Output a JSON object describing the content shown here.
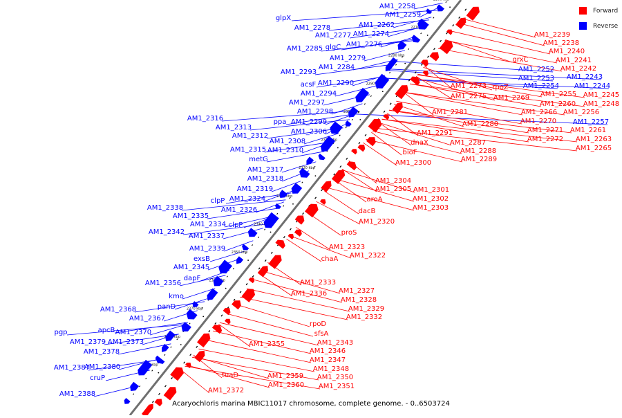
{
  "legend": {
    "forward_label": "Forward",
    "reverse_label": "Reverse",
    "forward_color": "#ff0000",
    "reverse_color": "#0000ff"
  },
  "caption": "Acaryochloris marina MBIC11017 chromosome, complete genome. - 0..6503724",
  "axis_ticks": [
    "2260 kbp",
    "2270 kbp",
    "2280 kbp",
    "2290 kbp",
    "2300 kbp",
    "2310 kbp",
    "2320 kbp",
    "2330 kbp",
    "2340 kbp",
    "2350 kbp",
    "2360 kbp",
    "2370 kbp",
    "2380 kbp",
    "2390 kbp"
  ],
  "reverse_labels": [
    "AM1_2258",
    "AM1_2259",
    "glpX",
    "AM1_2262",
    "AM1_2278",
    "AM1_2277",
    "AM1_2274",
    "AM1_2276",
    "glgC",
    "AM1_2285",
    "AM1_2279",
    "AM1_2284",
    "AM1_2293",
    "AM1_2290",
    "acsF",
    "AM1_2294",
    "AM1_2297",
    "AM1_2298",
    "ppa",
    "AM1_2299",
    "AM1_2306",
    "AM1_2316",
    "AM1_2313",
    "AM1_2312",
    "AM1_2308",
    "AM1_2315",
    "AM1_2310",
    "metG",
    "AM1_2317",
    "AM1_2318",
    "AM1_2319",
    "clpP",
    "AM1_2324",
    "AM1_2338",
    "AM1_2326",
    "AM1_2335",
    "AM1_2334",
    "clpP",
    "AM1_2342",
    "AM1_2337",
    "AM1_2339",
    "exsB",
    "AM1_2345",
    "dapF",
    "AM1_2356",
    "kmo",
    "panD",
    "AM1_2368",
    "AM1_2367",
    "pgp",
    "apcB",
    "AM1_2370",
    "AM1_2379",
    "AM1_2373",
    "AM1_2378",
    "AM1_2387",
    "AM1_2380",
    "cruP",
    "AM1_2388",
    "AM1_2252",
    "AM1_2253",
    "AM1_2243",
    "AM1_2254",
    "AM1_2244",
    "AM1_2257"
  ],
  "forward_labels": [
    "AM1_2239",
    "AM1_2238",
    "AM1_2240",
    "grxC",
    "AM1_2241",
    "AM1_2242",
    "AM1_2273",
    "rpoZ",
    "AM1_2275",
    "AM1_2269",
    "AM1_2255",
    "AM1_2245",
    "AM1_2260",
    "AM1_2248",
    "AM1_2266",
    "AM1_2256",
    "AM1_2270",
    "AM1_2271",
    "AM1_2261",
    "AM1_2272",
    "AM1_2263",
    "AM1_2265",
    "AM1_2281",
    "AM1_2280",
    "dnaX",
    "AM1_2291",
    "AM1_2287",
    "AM1_2288",
    "AM1_2289",
    "bioF",
    "AM1_2300",
    "AM1_2304",
    "AM1_2305",
    "AM1_2301",
    "aroA",
    "AM1_2302",
    "AM1_2303",
    "dacB",
    "AM1_2320",
    "proS",
    "AM1_2323",
    "AM1_2322",
    "chaA",
    "AM1_2333",
    "AM1_2327",
    "AM1_2336",
    "AM1_2328",
    "AM1_2329",
    "AM1_2332",
    "rpoD",
    "sfsA",
    "AM1_2343",
    "AM1_2355",
    "AM1_2346",
    "AM1_2347",
    "AM1_2348",
    "tuaD",
    "AM1_2359",
    "AM1_2350",
    "AM1_2360",
    "AM1_2351",
    "AM1_2372"
  ]
}
